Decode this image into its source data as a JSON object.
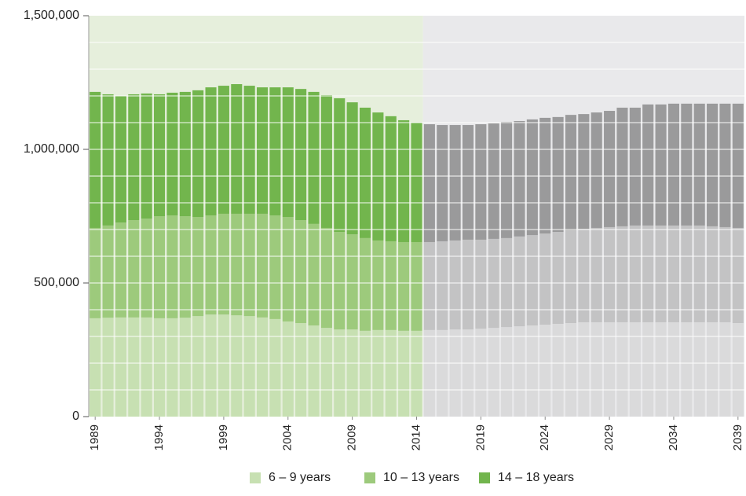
{
  "chart_data": {
    "type": "stacked_bar",
    "x": [
      1989,
      1990,
      1991,
      1992,
      1993,
      1994,
      1995,
      1996,
      1997,
      1998,
      1999,
      2000,
      2001,
      2002,
      2003,
      2004,
      2005,
      2006,
      2007,
      2008,
      2009,
      2010,
      2011,
      2012,
      2013,
      2014,
      2015,
      2016,
      2017,
      2018,
      2019,
      2020,
      2021,
      2022,
      2023,
      2024,
      2025,
      2026,
      2027,
      2028,
      2029,
      2030,
      2031,
      2032,
      2033,
      2034,
      2035,
      2036,
      2037,
      2038,
      2039
    ],
    "xlim": [
      1988.5,
      2039.5
    ],
    "xticks": [
      1989,
      1994,
      1999,
      2004,
      2009,
      2014,
      2019,
      2024,
      2029,
      2034,
      2039
    ],
    "ylim": [
      0,
      1500000
    ],
    "yticks": [
      {
        "value": 0,
        "label": "0"
      },
      {
        "value": 500000,
        "label": "500,000"
      },
      {
        "value": 1000000,
        "label": "1,000,000"
      },
      {
        "value": 1500000,
        "label": "1,500,000"
      }
    ],
    "ygrid": [
      100000,
      200000,
      300000,
      400000,
      500000,
      600000,
      700000,
      800000,
      900000,
      1000000,
      1100000,
      1200000,
      1300000,
      1400000
    ],
    "projection_from": 2015,
    "background_colors": [
      "#e6efdc",
      "#e9e9eb"
    ],
    "series": [
      {
        "name": "6 – 9 years",
        "color": "#c7e0b2",
        "projection_color": "#dadadb",
        "values": [
          368000,
          370000,
          371000,
          371000,
          371000,
          368000,
          368000,
          370000,
          376000,
          382000,
          382000,
          379000,
          376000,
          371000,
          365000,
          356000,
          350000,
          341000,
          332000,
          326000,
          326000,
          321000,
          324000,
          324000,
          321000,
          321000,
          324000,
          324000,
          326000,
          326000,
          329000,
          332000,
          335000,
          338000,
          341000,
          344000,
          347000,
          350000,
          353000,
          353000,
          353000,
          353000,
          353000,
          353000,
          353000,
          353000,
          353000,
          353000,
          353000,
          353000,
          350000
        ]
      },
      {
        "name": "10 – 13 years",
        "color": "#9dca7c",
        "projection_color": "#c3c3c4",
        "values": [
          338000,
          345000,
          355000,
          364000,
          370000,
          382000,
          385000,
          380000,
          371000,
          371000,
          377000,
          380000,
          383000,
          388000,
          388000,
          391000,
          385000,
          380000,
          374000,
          365000,
          356000,
          347000,
          335000,
          332000,
          332000,
          332000,
          329000,
          332000,
          333000,
          336000,
          333000,
          333000,
          333000,
          336000,
          338000,
          341000,
          344000,
          347000,
          350000,
          353000,
          356000,
          359000,
          362000,
          362000,
          362000,
          362000,
          362000,
          362000,
          359000,
          356000,
          356000
        ]
      },
      {
        "name": "14 – 18 years",
        "color": "#72b54d",
        "projection_color": "#9a9a9b",
        "values": [
          509000,
          491000,
          474000,
          471000,
          468000,
          456000,
          459000,
          465000,
          474000,
          479000,
          479000,
          485000,
          479000,
          473000,
          479000,
          485000,
          491000,
          494000,
          497000,
          500000,
          494000,
          488000,
          479000,
          468000,
          456000,
          447000,
          441000,
          435000,
          432000,
          429000,
          432000,
          432000,
          435000,
          432000,
          433000,
          433000,
          430000,
          432000,
          429000,
          432000,
          435000,
          444000,
          441000,
          453000,
          453000,
          456000,
          456000,
          456000,
          459000,
          462000,
          465000
        ]
      }
    ]
  }
}
